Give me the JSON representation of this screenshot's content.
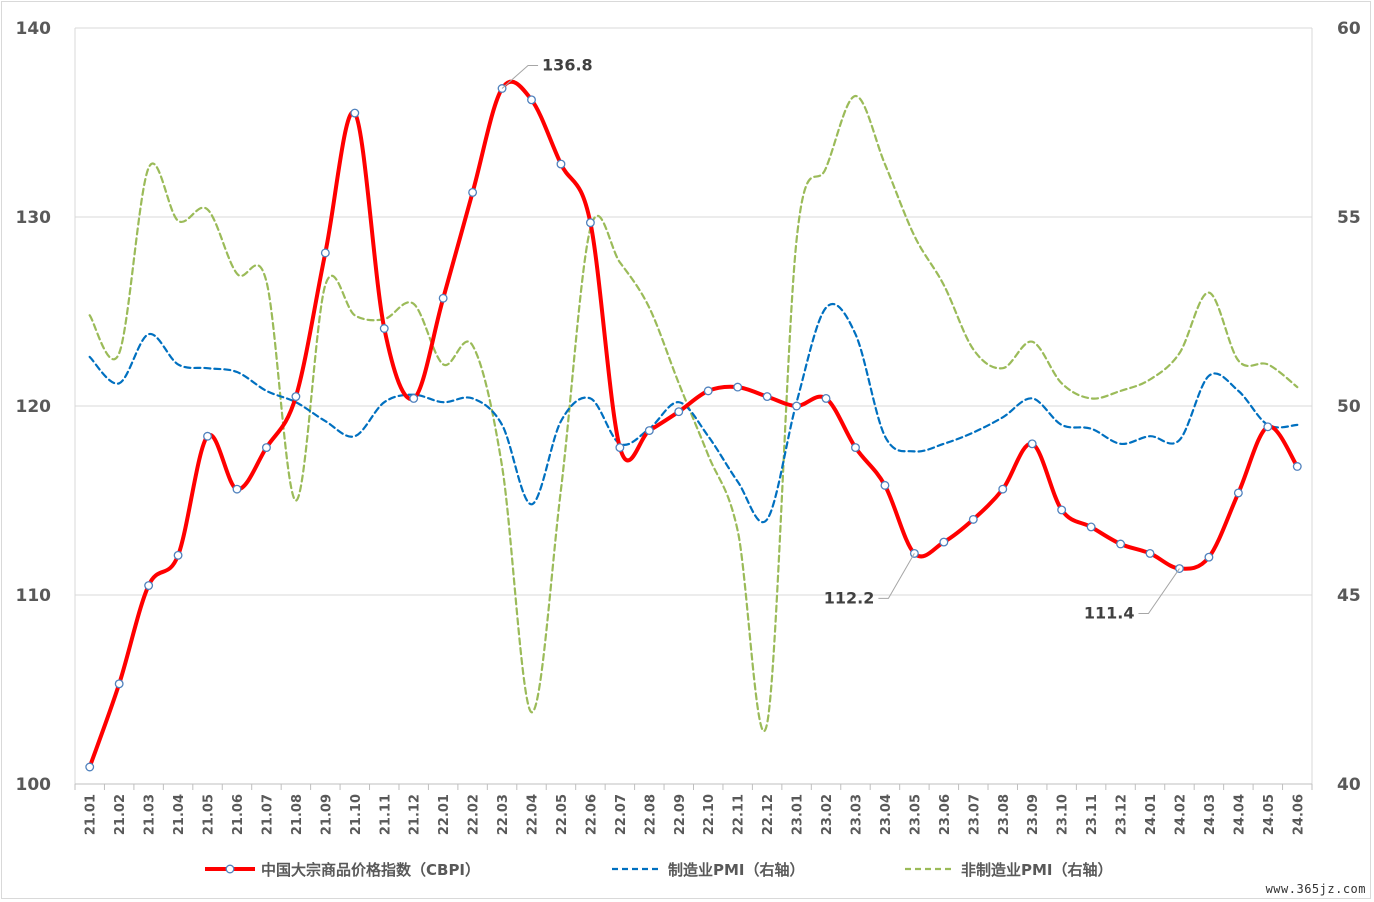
{
  "chart_data": {
    "type": "line",
    "title": "",
    "x": [
      "21.01",
      "21.02",
      "21.03",
      "21.04",
      "21.05",
      "21.06",
      "21.07",
      "21.08",
      "21.09",
      "21.10",
      "21.11",
      "21.12",
      "22.01",
      "22.02",
      "22.03",
      "22.04",
      "22.05",
      "22.06",
      "22.07",
      "22.08",
      "22.09",
      "22.10",
      "22.11",
      "22.12",
      "23.01",
      "23.02",
      "23.03",
      "23.04",
      "23.05",
      "23.06",
      "23.07",
      "23.08",
      "23.09",
      "23.10",
      "23.11",
      "23.12",
      "24.01",
      "24.02",
      "24.03",
      "24.04",
      "24.05",
      "24.06"
    ],
    "y_left": {
      "ticks": [
        "100",
        "110",
        "120",
        "130",
        "140"
      ],
      "lim": [
        100,
        140
      ]
    },
    "y_right": {
      "ticks": [
        "40",
        "45",
        "50",
        "55",
        "60"
      ],
      "lim": [
        40,
        60
      ]
    },
    "grid": true,
    "legend_position": "bottom",
    "series": [
      {
        "name": "中国大宗商品价格指数（CBPI）",
        "axis": "left",
        "color": "#ff0000",
        "style": "solid",
        "markers": true,
        "values": [
          100.9,
          105.3,
          110.5,
          112.1,
          118.4,
          115.6,
          117.8,
          120.5,
          128.1,
          135.5,
          124.1,
          120.4,
          125.7,
          131.3,
          136.8,
          136.2,
          132.8,
          129.7,
          117.8,
          118.7,
          119.7,
          120.8,
          121.0,
          120.5,
          120.0,
          120.4,
          117.8,
          115.8,
          112.2,
          112.8,
          114.0,
          115.6,
          118.0,
          114.5,
          113.6,
          112.7,
          112.2,
          111.4,
          112.0,
          115.4,
          118.9,
          116.8
        ]
      },
      {
        "name": "制造业PMI（右轴）",
        "axis": "right",
        "color": "#0070c0",
        "style": "dashed",
        "markers": false,
        "values": [
          51.3,
          50.6,
          51.9,
          51.1,
          51.0,
          50.9,
          50.4,
          50.1,
          49.6,
          49.2,
          50.1,
          50.3,
          50.1,
          50.2,
          49.5,
          47.4,
          49.6,
          50.2,
          49.0,
          49.4,
          50.1,
          49.2,
          48.0,
          47.0,
          50.1,
          52.6,
          51.9,
          49.2,
          48.8,
          49.0,
          49.3,
          49.7,
          50.2,
          49.5,
          49.4,
          49.0,
          49.2,
          49.1,
          50.8,
          50.4,
          49.5,
          49.5
        ]
      },
      {
        "name": "非制造业PMI（右轴）",
        "axis": "right",
        "color": "#9bbb59",
        "style": "dashed",
        "markers": false,
        "values": [
          52.4,
          51.4,
          56.3,
          54.9,
          55.2,
          53.5,
          53.3,
          47.5,
          53.2,
          52.4,
          52.3,
          52.7,
          51.1,
          51.6,
          48.4,
          41.9,
          47.8,
          54.7,
          53.8,
          52.6,
          50.6,
          48.7,
          46.7,
          41.6,
          54.4,
          56.3,
          58.2,
          56.4,
          54.5,
          53.2,
          51.5,
          51.0,
          51.7,
          50.6,
          50.2,
          50.4,
          50.7,
          51.4,
          53.0,
          51.2,
          51.1,
          50.5
        ]
      }
    ],
    "annotations": [
      {
        "text": "136.8",
        "series": 0,
        "index": 14
      },
      {
        "text": "112.2",
        "series": 0,
        "index": 28
      },
      {
        "text": "111.4",
        "series": 0,
        "index": 37
      }
    ]
  },
  "watermark": "www.365jz.com"
}
